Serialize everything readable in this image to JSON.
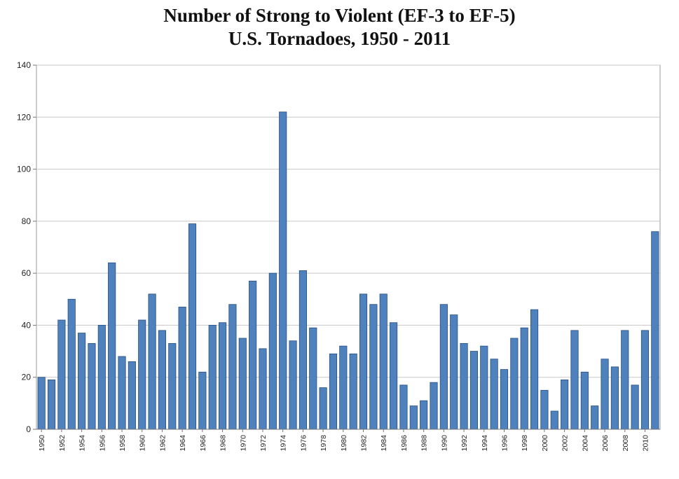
{
  "chart_data": {
    "type": "bar",
    "title": "Number of Strong to Violent (EF-3 to EF-5)",
    "subtitle": "U.S. Tornadoes, 1950 - 2011",
    "xlabel": "",
    "ylabel": "",
    "ylim": [
      0,
      140
    ],
    "yticks": [
      0,
      20,
      40,
      60,
      80,
      100,
      120,
      140
    ],
    "grid": true,
    "legend": "none",
    "bar_color": "#4f81bd",
    "bar_edge": "#274f80",
    "grid_color": "#c8c8c8",
    "categories": [
      "1950",
      "1951",
      "1952",
      "1953",
      "1954",
      "1955",
      "1956",
      "1957",
      "1958",
      "1959",
      "1960",
      "1961",
      "1962",
      "1963",
      "1964",
      "1965",
      "1966",
      "1967",
      "1968",
      "1969",
      "1970",
      "1971",
      "1972",
      "1973",
      "1974",
      "1975",
      "1976",
      "1977",
      "1978",
      "1979",
      "1980",
      "1981",
      "1982",
      "1983",
      "1984",
      "1985",
      "1986",
      "1987",
      "1988",
      "1989",
      "1990",
      "1991",
      "1992",
      "1993",
      "1994",
      "1995",
      "1996",
      "1997",
      "1998",
      "1999",
      "2000",
      "2001",
      "2002",
      "2003",
      "2004",
      "2005",
      "2006",
      "2007",
      "2008",
      "2009",
      "2010",
      "2011"
    ],
    "tick_labels": [
      "1950",
      "1952",
      "1954",
      "1956",
      "1958",
      "1960",
      "1962",
      "1964",
      "1966",
      "1968",
      "1970",
      "1972",
      "1974",
      "1976",
      "1978",
      "1980",
      "1982",
      "1984",
      "1986",
      "1988",
      "1990",
      "1992",
      "1994",
      "1996",
      "1998",
      "2000",
      "2002",
      "2004",
      "2006",
      "2008",
      "2010"
    ],
    "values": [
      20,
      19,
      42,
      50,
      37,
      33,
      40,
      64,
      28,
      26,
      42,
      52,
      38,
      33,
      47,
      79,
      22,
      40,
      41,
      48,
      35,
      57,
      31,
      60,
      122,
      34,
      61,
      39,
      16,
      29,
      32,
      29,
      52,
      48,
      52,
      41,
      17,
      9,
      11,
      18,
      48,
      44,
      33,
      30,
      32,
      27,
      23,
      35,
      39,
      46,
      15,
      7,
      19,
      38,
      22,
      9,
      27,
      24,
      38,
      17,
      38,
      76
    ]
  }
}
